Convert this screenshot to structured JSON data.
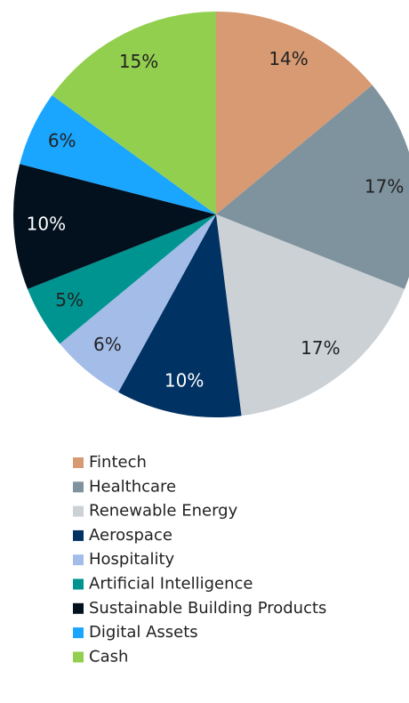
{
  "chart_data": {
    "type": "pie",
    "categories": [
      "Fintech",
      "Healthcare",
      "Renewable Energy",
      "Aerospace",
      "Hospitality",
      "Artificial Intelligence",
      "Sustainable Building Products",
      "Digital Assets",
      "Cash"
    ],
    "values": [
      14,
      17,
      17,
      10,
      6,
      5,
      10,
      6,
      15
    ],
    "value_labels": [
      "14%",
      "17%",
      "17%",
      "10%",
      "6%",
      "5%",
      "10%",
      "6%",
      "15%"
    ],
    "colors": [
      "#d79a72",
      "#7f939e",
      "#ccd1d6",
      "#003263",
      "#a4bde8",
      "#009490",
      "#03111f",
      "#1aa5ff",
      "#93cf4f"
    ],
    "legend": "bottom"
  }
}
